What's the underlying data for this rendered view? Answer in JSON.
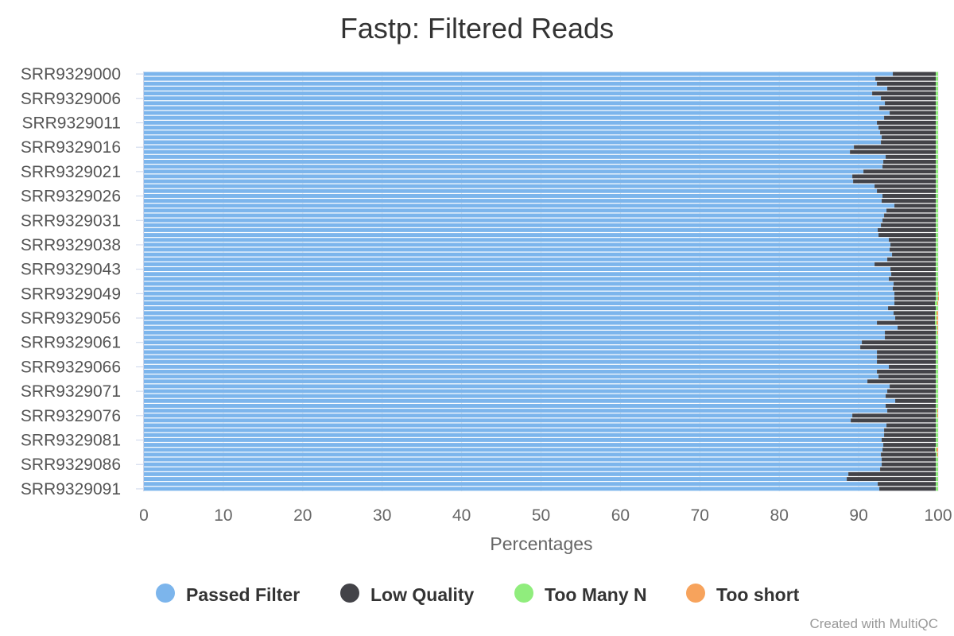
{
  "chart_data": {
    "type": "bar",
    "orientation": "horizontal",
    "stacked": true,
    "title": "Fastp: Filtered Reads",
    "xlabel": "Percentages",
    "xlim": [
      0,
      100
    ],
    "xticks": [
      "0",
      "10",
      "20",
      "30",
      "40",
      "50",
      "60",
      "70",
      "80",
      "90",
      "100"
    ],
    "yticks": [
      "SRR9329000",
      "SRR9329006",
      "SRR9329011",
      "SRR9329016",
      "SRR9329021",
      "SRR9329026",
      "SRR9329031",
      "SRR9329038",
      "SRR9329043",
      "SRR9329049",
      "SRR9329056",
      "SRR9329061",
      "SRR9329066",
      "SRR9329071",
      "SRR9329076",
      "SRR9329081",
      "SRR9329086",
      "SRR9329091"
    ],
    "ytick_index": [
      0,
      5,
      10,
      15,
      20,
      25,
      30,
      35,
      40,
      45,
      50,
      55,
      60,
      65,
      70,
      75,
      80,
      85
    ],
    "grid": true,
    "legend_position": "bottom",
    "series": [
      {
        "name": "Passed Filter",
        "color": "#7cb5ec",
        "values": [
          94.3,
          92.1,
          92.3,
          93.6,
          91.7,
          92.8,
          93.3,
          92.6,
          93.9,
          93.2,
          92.3,
          92.5,
          92.7,
          92.9,
          92.8,
          89.4,
          88.9,
          93.4,
          93.1,
          93.0,
          90.6,
          89.2,
          89.3,
          92.0,
          92.3,
          93.0,
          92.9,
          94.5,
          93.5,
          93.2,
          93.0,
          92.8,
          92.4,
          92.5,
          93.8,
          94.0,
          93.9,
          94.2,
          93.6,
          92.0,
          94.0,
          94.1,
          93.8,
          94.4,
          94.3,
          94.5,
          94.5,
          94.5,
          93.7,
          94.4,
          94.6,
          92.3,
          94.9,
          93.3,
          93.3,
          90.4,
          90.2,
          92.3,
          92.3,
          92.3,
          93.8,
          92.3,
          92.5,
          91.1,
          93.9,
          93.6,
          93.4,
          94.6,
          93.4,
          93.6,
          89.2,
          89.0,
          93.5,
          93.2,
          93.2,
          92.9,
          93.1,
          93.0,
          92.8,
          92.9,
          92.9,
          92.7,
          88.7,
          88.5,
          92.4,
          92.6
        ]
      },
      {
        "name": "Low Quality",
        "color": "#434348",
        "values": [
          5.4,
          7.6,
          7.4,
          6.1,
          8.0,
          6.9,
          6.4,
          7.1,
          5.8,
          6.5,
          7.4,
          7.2,
          7.0,
          6.8,
          6.9,
          10.3,
          10.8,
          6.3,
          6.6,
          6.7,
          9.1,
          10.5,
          10.4,
          7.7,
          7.4,
          6.7,
          6.8,
          5.2,
          6.2,
          6.5,
          6.7,
          6.9,
          7.3,
          7.2,
          5.9,
          5.7,
          5.8,
          5.5,
          6.1,
          7.7,
          5.7,
          5.6,
          5.9,
          5.3,
          5.4,
          5.2,
          5.2,
          5.1,
          6.0,
          5.2,
          5.0,
          7.3,
          4.8,
          6.4,
          6.4,
          9.3,
          9.5,
          7.4,
          7.4,
          7.4,
          5.9,
          7.4,
          7.2,
          8.6,
          5.8,
          6.1,
          6.3,
          5.1,
          6.3,
          6.1,
          10.5,
          10.7,
          6.2,
          6.5,
          6.5,
          6.8,
          6.6,
          6.6,
          6.9,
          6.8,
          6.8,
          7.0,
          11.0,
          11.2,
          7.3,
          7.1
        ]
      },
      {
        "name": "Too Many N",
        "color": "#90ed7d",
        "values": [
          0.3,
          0.3,
          0.3,
          0.3,
          0.3,
          0.3,
          0.3,
          0.3,
          0.3,
          0.3,
          0.3,
          0.3,
          0.3,
          0.3,
          0.3,
          0.3,
          0.3,
          0.3,
          0.3,
          0.3,
          0.3,
          0.3,
          0.3,
          0.3,
          0.3,
          0.3,
          0.3,
          0.3,
          0.3,
          0.3,
          0.3,
          0.3,
          0.3,
          0.3,
          0.3,
          0.3,
          0.3,
          0.3,
          0.3,
          0.3,
          0.3,
          0.3,
          0.3,
          0.3,
          0.3,
          0.3,
          0.3,
          0.3,
          0.3,
          0.2,
          0.2,
          0.2,
          0.2,
          0.2,
          0.3,
          0.3,
          0.3,
          0.3,
          0.3,
          0.3,
          0.3,
          0.3,
          0.3,
          0.3,
          0.3,
          0.3,
          0.3,
          0.3,
          0.3,
          0.2,
          0.2,
          0.3,
          0.3,
          0.3,
          0.3,
          0.3,
          0.3,
          0.2,
          0.2,
          0.3,
          0.3,
          0.3,
          0.3,
          0.3,
          0.3,
          0.3
        ]
      },
      {
        "name": "Too short",
        "color": "#f7a35c",
        "values": [
          0,
          0,
          0,
          0,
          0,
          0,
          0,
          0,
          0,
          0,
          0,
          0,
          0,
          0,
          0,
          0,
          0,
          0,
          0,
          0,
          0,
          0,
          0,
          0,
          0,
          0,
          0,
          0,
          0,
          0,
          0,
          0,
          0,
          0,
          0,
          0,
          0,
          0,
          0,
          0,
          0,
          0,
          0,
          0,
          0,
          0.1,
          0.1,
          0.1,
          0,
          0.2,
          0.2,
          0.2,
          0.1,
          0.1,
          0,
          0,
          0,
          0,
          0,
          0,
          0,
          0,
          0,
          0,
          0,
          0,
          0,
          0,
          0,
          0.1,
          0.1,
          0,
          0,
          0,
          0,
          0,
          0,
          0.2,
          0.1,
          0,
          0,
          0,
          0,
          0,
          0,
          0
        ]
      }
    ]
  },
  "credit": "Created with MultiQC"
}
